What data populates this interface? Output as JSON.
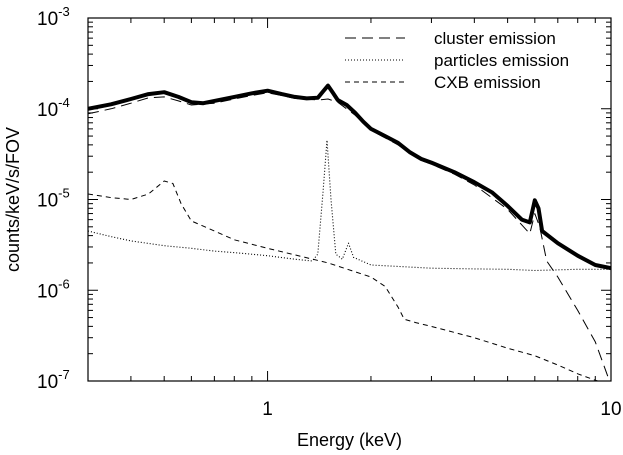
{
  "chart_data": {
    "type": "line",
    "xlabel": "Energy (keV)",
    "ylabel": "counts/keV/s/FOV",
    "xscale": "log",
    "yscale": "log",
    "xlim": [
      0.3,
      10
    ],
    "ylim": [
      1e-07,
      0.001
    ],
    "x_ticks": [
      {
        "value": 1,
        "label": "1"
      },
      {
        "value": 10,
        "label": "10"
      }
    ],
    "y_ticks": [
      {
        "value": 1e-07,
        "base": "10",
        "exp": "-7"
      },
      {
        "value": 1e-06,
        "base": "10",
        "exp": "-6"
      },
      {
        "value": 1e-05,
        "base": "10",
        "exp": "-5"
      },
      {
        "value": 0.0001,
        "base": "10",
        "exp": "-4"
      },
      {
        "value": 0.001,
        "base": "10",
        "exp": "-3"
      }
    ],
    "legend_position": "top-right",
    "series": [
      {
        "name": "",
        "style": "thick-solid",
        "points": [
          [
            0.3,
            0.0001
          ],
          [
            0.35,
            0.000112
          ],
          [
            0.4,
            0.000128
          ],
          [
            0.45,
            0.000145
          ],
          [
            0.5,
            0.000152
          ],
          [
            0.55,
            0.000135
          ],
          [
            0.6,
            0.000118
          ],
          [
            0.65,
            0.000115
          ],
          [
            0.7,
            0.000122
          ],
          [
            0.8,
            0.000135
          ],
          [
            0.9,
            0.000148
          ],
          [
            1.0,
            0.000158
          ],
          [
            1.1,
            0.000145
          ],
          [
            1.2,
            0.000135
          ],
          [
            1.3,
            0.00013
          ],
          [
            1.4,
            0.000132
          ],
          [
            1.45,
            0.000155
          ],
          [
            1.5,
            0.00018
          ],
          [
            1.55,
            0.00015
          ],
          [
            1.6,
            0.000125
          ],
          [
            1.7,
            0.00011
          ],
          [
            1.8,
            9e-05
          ],
          [
            1.9,
            7.2e-05
          ],
          [
            2.0,
            6e-05
          ],
          [
            2.2,
            5e-05
          ],
          [
            2.4,
            4.2e-05
          ],
          [
            2.6,
            3.3e-05
          ],
          [
            2.8,
            2.8e-05
          ],
          [
            3.0,
            2.55e-05
          ],
          [
            3.5,
            2e-05
          ],
          [
            4.0,
            1.55e-05
          ],
          [
            4.5,
            1.2e-05
          ],
          [
            5.0,
            8.5e-06
          ],
          [
            5.5,
            6e-06
          ],
          [
            5.8,
            5.6e-06
          ],
          [
            6.0,
            9.8e-06
          ],
          [
            6.15,
            8e-06
          ],
          [
            6.3,
            4.5e-06
          ],
          [
            7.0,
            3.3e-06
          ],
          [
            8.0,
            2.4e-06
          ],
          [
            9.0,
            1.9e-06
          ],
          [
            10.0,
            1.75e-06
          ]
        ]
      },
      {
        "name": "cluster emission",
        "style": "long-dash",
        "points": [
          [
            0.3,
            8.8e-05
          ],
          [
            0.35,
            0.0001
          ],
          [
            0.4,
            0.000115
          ],
          [
            0.45,
            0.000132
          ],
          [
            0.5,
            0.000135
          ],
          [
            0.55,
            0.000122
          ],
          [
            0.6,
            0.00011
          ],
          [
            0.7,
            0.000115
          ],
          [
            0.8,
            0.000128
          ],
          [
            0.9,
            0.00014
          ],
          [
            1.0,
            0.00015
          ],
          [
            1.1,
            0.00014
          ],
          [
            1.2,
            0.00013
          ],
          [
            1.4,
            0.000125
          ],
          [
            1.5,
            0.000128
          ],
          [
            1.6,
            0.000118
          ],
          [
            1.8,
            8.5e-05
          ],
          [
            2.0,
            5.8e-05
          ],
          [
            2.4,
            4e-05
          ],
          [
            2.8,
            2.7e-05
          ],
          [
            3.0,
            2.45e-05
          ],
          [
            3.5,
            1.9e-05
          ],
          [
            4.0,
            1.45e-05
          ],
          [
            5.0,
            7.8e-06
          ],
          [
            5.8,
            4.2e-06
          ],
          [
            6.0,
            7e-06
          ],
          [
            6.2,
            5e-06
          ],
          [
            6.5,
            2.1e-06
          ],
          [
            7.0,
            1.4e-06
          ],
          [
            8.0,
            6e-07
          ],
          [
            9.0,
            2.7e-07
          ],
          [
            10.0,
            9e-08
          ]
        ]
      },
      {
        "name": "particles emission",
        "style": "dotted",
        "points": [
          [
            0.3,
            4.5e-06
          ],
          [
            0.35,
            3.9e-06
          ],
          [
            0.4,
            3.5e-06
          ],
          [
            0.5,
            3.1e-06
          ],
          [
            0.6,
            2.9e-06
          ],
          [
            0.7,
            2.7e-06
          ],
          [
            0.8,
            2.6e-06
          ],
          [
            1.0,
            2.4e-06
          ],
          [
            1.2,
            2.2e-06
          ],
          [
            1.35,
            2.1e-06
          ],
          [
            1.4,
            2.5e-06
          ],
          [
            1.45,
            1.2e-05
          ],
          [
            1.49,
            4.5e-05
          ],
          [
            1.53,
            1e-05
          ],
          [
            1.58,
            2.5e-06
          ],
          [
            1.65,
            2.2e-06
          ],
          [
            1.72,
            3.3e-06
          ],
          [
            1.78,
            2.3e-06
          ],
          [
            2.0,
            1.9e-06
          ],
          [
            3.0,
            1.75e-06
          ],
          [
            4.0,
            1.72e-06
          ],
          [
            5.0,
            1.7e-06
          ],
          [
            6.0,
            1.65e-06
          ],
          [
            8.0,
            1.7e-06
          ],
          [
            10.0,
            1.7e-06
          ]
        ]
      },
      {
        "name": "CXB emission",
        "style": "short-dash",
        "points": [
          [
            0.3,
            1.15e-05
          ],
          [
            0.35,
            1.05e-05
          ],
          [
            0.4,
            1e-05
          ],
          [
            0.45,
            1.15e-05
          ],
          [
            0.5,
            1.6e-05
          ],
          [
            0.53,
            1.5e-05
          ],
          [
            0.56,
            9e-06
          ],
          [
            0.6,
            5.8e-06
          ],
          [
            0.7,
            4.5e-06
          ],
          [
            0.8,
            3.6e-06
          ],
          [
            1.0,
            2.9e-06
          ],
          [
            1.5,
            2e-06
          ],
          [
            2.0,
            1.4e-06
          ],
          [
            2.2,
            1.1e-06
          ],
          [
            2.4,
            6.5e-07
          ],
          [
            2.5,
            4.8e-07
          ],
          [
            2.7,
            4.4e-07
          ],
          [
            3.0,
            4e-07
          ],
          [
            4.0,
            3e-07
          ],
          [
            5.0,
            2.3e-07
          ],
          [
            6.0,
            1.9e-07
          ],
          [
            7.0,
            1.5e-07
          ],
          [
            8.0,
            1.2e-07
          ],
          [
            9.0,
            1.02e-07
          ],
          [
            10.0,
            9e-08
          ]
        ]
      }
    ]
  }
}
